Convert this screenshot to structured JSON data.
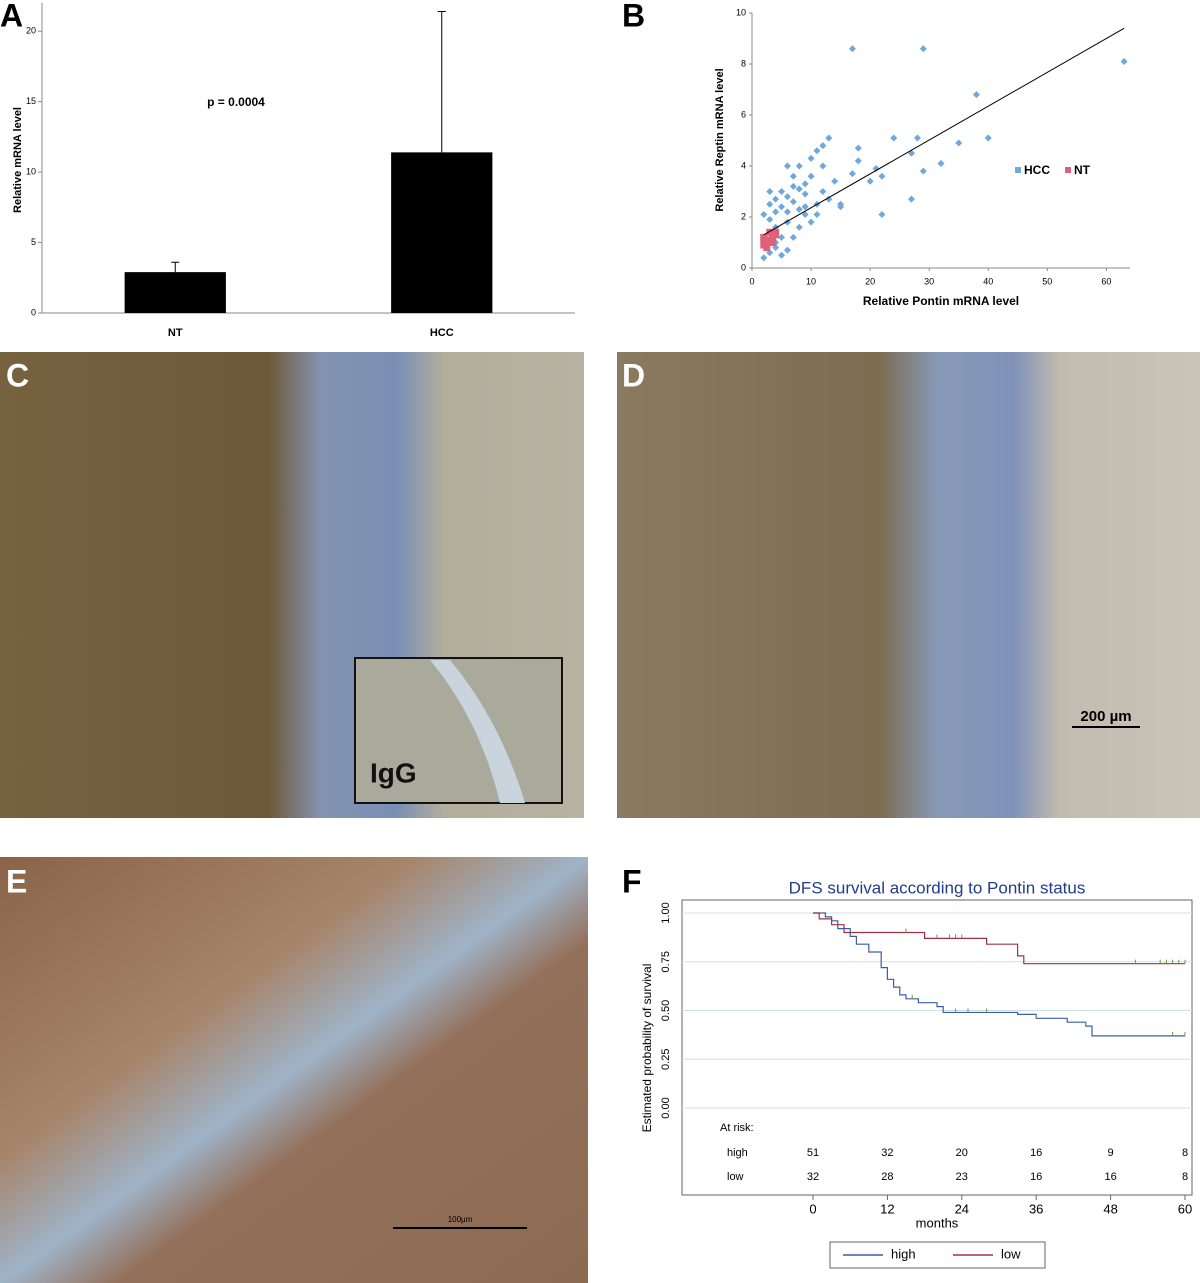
{
  "chart_data": [
    {
      "type": "bar",
      "panel": "A",
      "ylabel": "Relative mRNA level",
      "annotation": "p = 0.0004",
      "categories": [
        "NT",
        "HCC"
      ],
      "values": [
        2.9,
        11.4
      ],
      "errors": [
        0.7,
        10.0
      ],
      "color": "#000000",
      "ylim": [
        0,
        22
      ],
      "yticks": [
        0,
        5,
        10,
        15,
        20
      ]
    },
    {
      "type": "scatter",
      "panel": "B",
      "xlabel": "Relative Pontin mRNA level",
      "ylabel": "Relative Reptin mRNA level",
      "xlim": [
        0,
        64
      ],
      "ylim": [
        0,
        10
      ],
      "xticks": [
        0,
        10,
        20,
        30,
        40,
        50,
        60
      ],
      "yticks": [
        0,
        2,
        4,
        6,
        8,
        10
      ],
      "series": [
        {
          "name": "HCC",
          "color": "#6fa8dc",
          "x": [
            17,
            29,
            63,
            38,
            40,
            35,
            28,
            24,
            27,
            32,
            29,
            22,
            21,
            17,
            18,
            18,
            13,
            12,
            11,
            10,
            12,
            10,
            14,
            15,
            22,
            27,
            20,
            13,
            11,
            9,
            8,
            7,
            6,
            8,
            7,
            6,
            5,
            5,
            4,
            3,
            3,
            4,
            2,
            3,
            6,
            8,
            9,
            10,
            7,
            5,
            4,
            4,
            6,
            5,
            3,
            2,
            8,
            9,
            11,
            12,
            15,
            6,
            4,
            3,
            7,
            9
          ],
          "values": [
            8.6,
            8.6,
            8.1,
            6.8,
            5.1,
            4.9,
            5.1,
            5.1,
            4.5,
            4.1,
            3.8,
            3.6,
            3.9,
            3.7,
            4.7,
            4.2,
            5.1,
            4.8,
            4.6,
            4.3,
            4.0,
            3.6,
            3.4,
            2.4,
            2.1,
            2.7,
            3.4,
            2.7,
            2.5,
            2.9,
            3.1,
            3.2,
            4.0,
            4.0,
            2.6,
            2.8,
            3.0,
            2.4,
            2.2,
            2.5,
            1.9,
            1.6,
            2.1,
            1.4,
            1.8,
            1.6,
            2.1,
            1.8,
            1.2,
            1.2,
            1.0,
            0.8,
            0.7,
            0.5,
            0.6,
            0.4,
            2.3,
            2.4,
            2.1,
            3.0,
            2.5,
            2.2,
            2.7,
            3.0,
            3.6,
            3.3
          ]
        },
        {
          "name": "NT",
          "color": "#e0607a",
          "x": [
            2,
            2.5,
            3,
            3.5,
            2,
            3,
            4,
            2.5,
            3.5,
            4,
            3,
            2
          ],
          "values": [
            0.9,
            1.0,
            1.1,
            1.2,
            1.2,
            1.4,
            1.3,
            0.8,
            1.0,
            1.4,
            1.0,
            1.1
          ]
        }
      ],
      "trendline": {
        "x": [
          2,
          63
        ],
        "values": [
          1.3,
          9.4
        ]
      }
    },
    {
      "type": "step",
      "panel": "F",
      "title": "DFS survival according to Pontin status",
      "xlabel": "months",
      "ylabel": "Estimated probability of survival",
      "xlim": [
        0,
        60
      ],
      "ylim": [
        0,
        1
      ],
      "xticks": [
        0,
        12,
        24,
        36,
        48,
        60
      ],
      "yticks": [
        {
          "value": 0,
          "label": "0.00"
        },
        {
          "value": 0.25,
          "label": "0.25"
        },
        {
          "value": 0.5,
          "label": "0.50"
        },
        {
          "value": 0.75,
          "label": "0.75"
        },
        {
          "value": 1,
          "label": "1.00"
        }
      ],
      "series": [
        {
          "name": "high",
          "color": "#3a5fa8",
          "x": [
            0,
            2,
            3,
            4,
            6,
            7,
            9,
            11,
            12,
            13,
            14,
            15,
            17,
            20,
            21,
            33,
            36,
            41,
            44,
            45,
            60
          ],
          "values": [
            1.0,
            0.98,
            0.96,
            0.92,
            0.88,
            0.84,
            0.8,
            0.72,
            0.66,
            0.62,
            0.58,
            0.56,
            0.54,
            0.52,
            0.49,
            0.48,
            0.46,
            0.44,
            0.42,
            0.37,
            0.37
          ],
          "censored": [
            16,
            23,
            25,
            28,
            36,
            44,
            58,
            60
          ]
        },
        {
          "name": "low",
          "color": "#a0304a",
          "x": [
            0,
            1,
            3,
            5,
            18,
            28,
            33,
            34,
            60
          ],
          "values": [
            1.0,
            0.97,
            0.94,
            0.9,
            0.87,
            0.84,
            0.78,
            0.74,
            0.74
          ],
          "censored": [
            15,
            20,
            22,
            23,
            24,
            52,
            56,
            57,
            58,
            59,
            60
          ]
        }
      ],
      "at_risk": {
        "label": "At risk:",
        "rows": [
          {
            "name": "high",
            "values": [
              51,
              32,
              20,
              16,
              9,
              8
            ]
          },
          {
            "name": "low",
            "values": [
              32,
              28,
              23,
              16,
              16,
              8
            ]
          }
        ]
      }
    }
  ],
  "images": [
    {
      "label": "C",
      "inset_label": "IgG"
    },
    {
      "label": "D",
      "scale_bar": "200 µm"
    },
    {
      "label": "E",
      "scale_bar": "100µm"
    }
  ]
}
